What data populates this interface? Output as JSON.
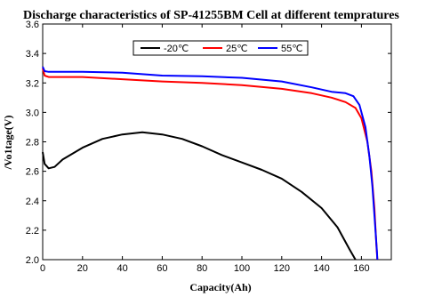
{
  "chart_data": {
    "type": "line",
    "title": "Discharge characteristics of SP-41255BM Cell at different tempratures",
    "xlabel": "Capacity(Ah)",
    "ylabel": "/Vo1tage(V)",
    "xlim": [
      0,
      175
    ],
    "ylim": [
      2.0,
      3.6
    ],
    "xticks": [
      0,
      20,
      40,
      60,
      80,
      100,
      120,
      140,
      160
    ],
    "yticks": [
      2.0,
      2.2,
      2.4,
      2.6,
      2.8,
      3.0,
      3.2,
      3.4,
      3.6
    ],
    "ytick_labels": [
      "2.0",
      "2.2",
      "2.4",
      "2.6",
      "2.8",
      "3.0",
      "3.2",
      "3.4",
      "3.6"
    ],
    "grid": false,
    "legend_position": "top-center",
    "series": [
      {
        "name": "-20℃",
        "color": "#000000",
        "points": [
          [
            0,
            2.73
          ],
          [
            1,
            2.65
          ],
          [
            3,
            2.62
          ],
          [
            6,
            2.63
          ],
          [
            10,
            2.68
          ],
          [
            20,
            2.76
          ],
          [
            30,
            2.82
          ],
          [
            40,
            2.85
          ],
          [
            50,
            2.865
          ],
          [
            60,
            2.85
          ],
          [
            70,
            2.82
          ],
          [
            80,
            2.77
          ],
          [
            90,
            2.71
          ],
          [
            100,
            2.66
          ],
          [
            110,
            2.61
          ],
          [
            120,
            2.55
          ],
          [
            130,
            2.46
          ],
          [
            140,
            2.35
          ],
          [
            148,
            2.22
          ],
          [
            154,
            2.07
          ],
          [
            157,
            2.0
          ]
        ]
      },
      {
        "name": "25℃",
        "color": "#ff0000",
        "points": [
          [
            0,
            3.3
          ],
          [
            1,
            3.25
          ],
          [
            3,
            3.24
          ],
          [
            10,
            3.24
          ],
          [
            20,
            3.24
          ],
          [
            40,
            3.225
          ],
          [
            60,
            3.21
          ],
          [
            80,
            3.2
          ],
          [
            100,
            3.185
          ],
          [
            120,
            3.16
          ],
          [
            135,
            3.13
          ],
          [
            145,
            3.1
          ],
          [
            152,
            3.07
          ],
          [
            157,
            3.03
          ],
          [
            160,
            2.96
          ],
          [
            163,
            2.8
          ],
          [
            165,
            2.6
          ],
          [
            166.5,
            2.35
          ],
          [
            167.5,
            2.1
          ],
          [
            168,
            2.0
          ]
        ]
      },
      {
        "name": "55℃",
        "color": "#0000ff",
        "points": [
          [
            0,
            3.31
          ],
          [
            1,
            3.28
          ],
          [
            3,
            3.275
          ],
          [
            20,
            3.275
          ],
          [
            40,
            3.27
          ],
          [
            60,
            3.25
          ],
          [
            80,
            3.245
          ],
          [
            100,
            3.235
          ],
          [
            120,
            3.21
          ],
          [
            135,
            3.17
          ],
          [
            145,
            3.14
          ],
          [
            152,
            3.13
          ],
          [
            156,
            3.11
          ],
          [
            159,
            3.05
          ],
          [
            162,
            2.9
          ],
          [
            164,
            2.7
          ],
          [
            165.5,
            2.5
          ],
          [
            166.8,
            2.25
          ],
          [
            167.8,
            2.05
          ],
          [
            168,
            2.0
          ]
        ]
      }
    ]
  }
}
